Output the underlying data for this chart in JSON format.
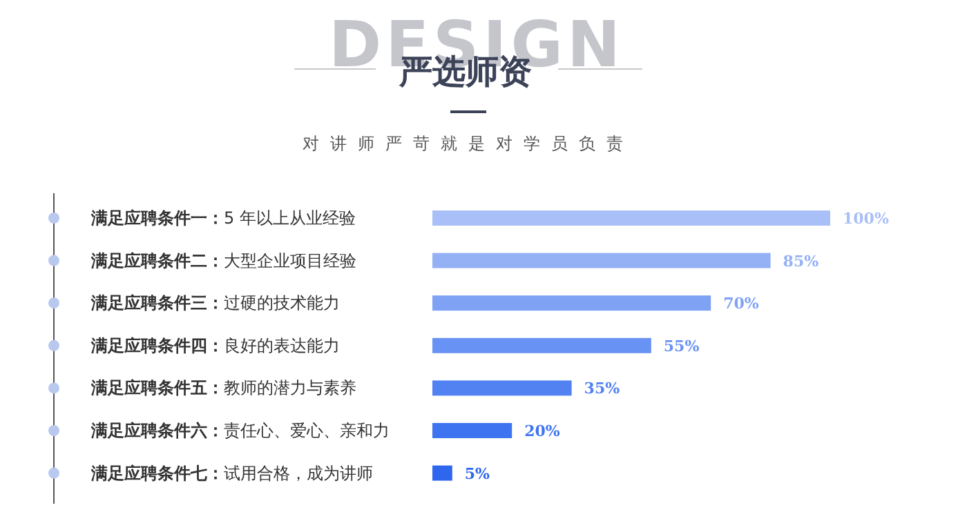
{
  "chart_data": {
    "type": "bar",
    "orientation": "horizontal",
    "title": "严选师资",
    "subtitle": "对讲师严苛就是对学员负责",
    "annotations": [
      "DESIGN"
    ],
    "categories": [
      "满足应聘条件一：5 年以上从业经验",
      "满足应聘条件二：大型企业项目经验",
      "满足应聘条件三：过硬的技术能力",
      "满足应聘条件四：良好的表达能力",
      "满足应聘条件五：教师的潜力与素养",
      "满足应聘条件六：责任心、爱心、亲和力",
      "满足应聘条件七：试用合格，成为讲师"
    ],
    "values": [
      100,
      85,
      70,
      55,
      35,
      20,
      5
    ],
    "value_labels": [
      "100%",
      "85%",
      "70%",
      "55%",
      "35%",
      "20%",
      "5%"
    ],
    "colors": [
      "#a8bff7",
      "#94b1f6",
      "#7fa2f5",
      "#6892f3",
      "#5282f2",
      "#3f74f0",
      "#2e67ee"
    ]
  }
}
